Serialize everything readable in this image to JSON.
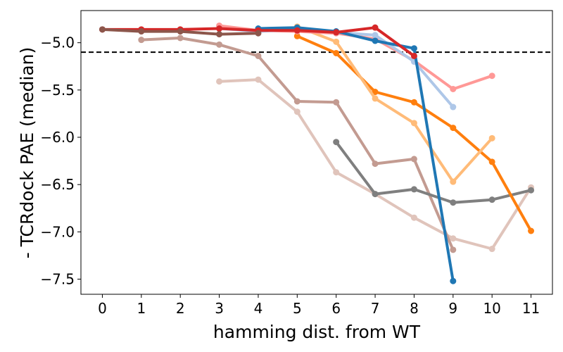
{
  "chart_data": {
    "type": "line",
    "title": "",
    "xlabel": "hamming dist. from WT",
    "ylabel": "- TCRdock PAE (median)",
    "xlim": [
      -0.55,
      11.55
    ],
    "ylim": [
      -7.66,
      -4.66
    ],
    "xticks": [
      0,
      1,
      2,
      3,
      4,
      5,
      6,
      7,
      8,
      9,
      10,
      11
    ],
    "yticks": [
      -7.5,
      -7.0,
      -6.5,
      -6.0,
      -5.5,
      -5.0
    ],
    "ytick_labels": [
      "−7.5",
      "−7.0",
      "−6.5",
      "−6.0",
      "−5.5",
      "−5.0"
    ],
    "grid": false,
    "legend": "none",
    "reference_line": {
      "y": -5.1,
      "style": "dashed",
      "color": "#000000"
    },
    "series": [
      {
        "color": "#e0c4bb",
        "points": [
          [
            3,
            -5.41
          ],
          [
            4,
            -5.39
          ],
          [
            5,
            -5.73
          ],
          [
            6,
            -6.37
          ],
          [
            7,
            -6.6
          ],
          [
            8,
            -6.85
          ],
          [
            9,
            -7.07
          ],
          [
            10,
            -7.18
          ],
          [
            11,
            -6.53
          ]
        ]
      },
      {
        "color": "#c39b91",
        "points": [
          [
            1,
            -4.97
          ],
          [
            2,
            -4.95
          ],
          [
            3,
            -5.02
          ],
          [
            4,
            -5.14
          ],
          [
            5,
            -5.62
          ],
          [
            6,
            -5.63
          ],
          [
            7,
            -6.28
          ],
          [
            8,
            -6.23
          ],
          [
            9,
            -7.19
          ]
        ]
      },
      {
        "color": "#7f7f7f",
        "points": [
          [
            6,
            -6.05
          ],
          [
            7,
            -6.6
          ],
          [
            8,
            -6.55
          ],
          [
            9,
            -6.69
          ],
          [
            10,
            -6.66
          ],
          [
            11,
            -6.56
          ]
        ]
      },
      {
        "color": "#ff7f0e",
        "points": [
          [
            5,
            -4.93
          ],
          [
            6,
            -5.11
          ],
          [
            7,
            -5.52
          ],
          [
            8,
            -5.63
          ],
          [
            9,
            -5.9
          ],
          [
            10,
            -6.26
          ],
          [
            11,
            -6.99
          ]
        ]
      },
      {
        "color": "#ffbb78",
        "points": [
          [
            5,
            -4.83
          ],
          [
            6,
            -4.99
          ],
          [
            7,
            -5.59
          ],
          [
            8,
            -5.85
          ],
          [
            9,
            -6.47
          ],
          [
            10,
            -6.01
          ]
        ]
      },
      {
        "color": "#ff9896",
        "points": [
          [
            3,
            -4.82
          ],
          [
            4,
            -4.87
          ],
          [
            5,
            -4.88
          ],
          [
            6,
            -4.9
          ],
          [
            7,
            -4.96
          ],
          [
            8,
            -5.19
          ],
          [
            9,
            -5.49
          ],
          [
            10,
            -5.35
          ]
        ]
      },
      {
        "color": "#aec7e8",
        "points": [
          [
            3,
            -4.85
          ],
          [
            4,
            -4.88
          ],
          [
            5,
            -4.86
          ],
          [
            6,
            -4.89
          ],
          [
            7,
            -4.92
          ],
          [
            8,
            -5.2
          ],
          [
            9,
            -5.68
          ]
        ]
      },
      {
        "color": "#1f77b4",
        "points": [
          [
            4,
            -4.85
          ],
          [
            5,
            -4.84
          ],
          [
            6,
            -4.88
          ],
          [
            7,
            -4.98
          ],
          [
            8,
            -5.06
          ],
          [
            9,
            -7.52
          ]
        ]
      },
      {
        "color": "#d62728",
        "points": [
          [
            0,
            -4.86
          ],
          [
            1,
            -4.86
          ],
          [
            2,
            -4.86
          ],
          [
            3,
            -4.85
          ],
          [
            4,
            -4.87
          ],
          [
            5,
            -4.87
          ],
          [
            6,
            -4.89
          ],
          [
            7,
            -4.84
          ],
          [
            8,
            -5.14
          ]
        ]
      },
      {
        "color": "#8c564b",
        "points": [
          [
            0,
            -4.86
          ],
          [
            1,
            -4.88
          ],
          [
            2,
            -4.88
          ],
          [
            3,
            -4.91
          ],
          [
            4,
            -4.9
          ]
        ]
      }
    ]
  }
}
